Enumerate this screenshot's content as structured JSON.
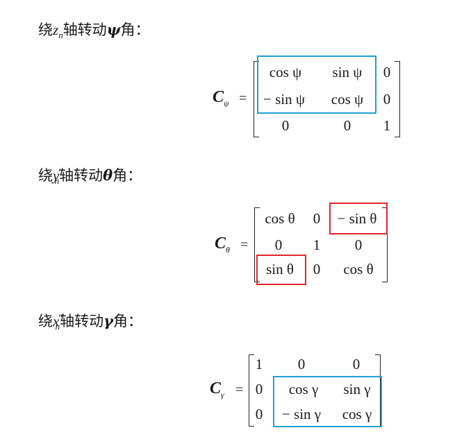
{
  "sections": [
    {
      "heading": {
        "prefix": "绕",
        "axis": "z",
        "sub": "n",
        "prime": "",
        "suffix": "轴转动",
        "angle": "ψ",
        "tail": "角："
      },
      "lhs": {
        "symbol": "C",
        "sub": "ψ"
      },
      "eq": "=",
      "matrix": [
        [
          "cos ψ",
          "sin ψ",
          "0"
        ],
        [
          "− sin ψ",
          "cos ψ",
          "0"
        ],
        [
          "0",
          "0",
          "1"
        ]
      ],
      "highlights": [
        {
          "color": "blue",
          "label": "2x2 block (rows 1-2, cols 1-2)"
        }
      ]
    },
    {
      "heading": {
        "prefix": "绕",
        "axis": "y",
        "sub": "n",
        "prime": "′",
        "suffix": "轴转动",
        "angle": "θ",
        "tail": "角："
      },
      "lhs": {
        "symbol": "C",
        "sub": "θ"
      },
      "eq": "=",
      "matrix": [
        [
          "cos θ",
          "0",
          "− sin θ"
        ],
        [
          "0",
          "1",
          "0"
        ],
        [
          "sin θ",
          "0",
          "cos θ"
        ]
      ],
      "highlights": [
        {
          "color": "red",
          "label": "row 1 col 3"
        },
        {
          "color": "red",
          "label": "row 3 col 1"
        }
      ]
    },
    {
      "heading": {
        "prefix": "绕",
        "axis": "x",
        "sub": "n",
        "prime": "″",
        "suffix": "轴转动",
        "angle": "γ",
        "tail": "角："
      },
      "lhs": {
        "symbol": "C",
        "sub": "γ"
      },
      "eq": "=",
      "matrix": [
        [
          "1",
          "0",
          "0"
        ],
        [
          "0",
          "cos γ",
          "sin γ"
        ],
        [
          "0",
          "− sin γ",
          "cos γ"
        ]
      ],
      "highlights": [
        {
          "color": "blue",
          "label": "2x2 block (rows 2-3, cols 2-3)"
        }
      ]
    }
  ]
}
